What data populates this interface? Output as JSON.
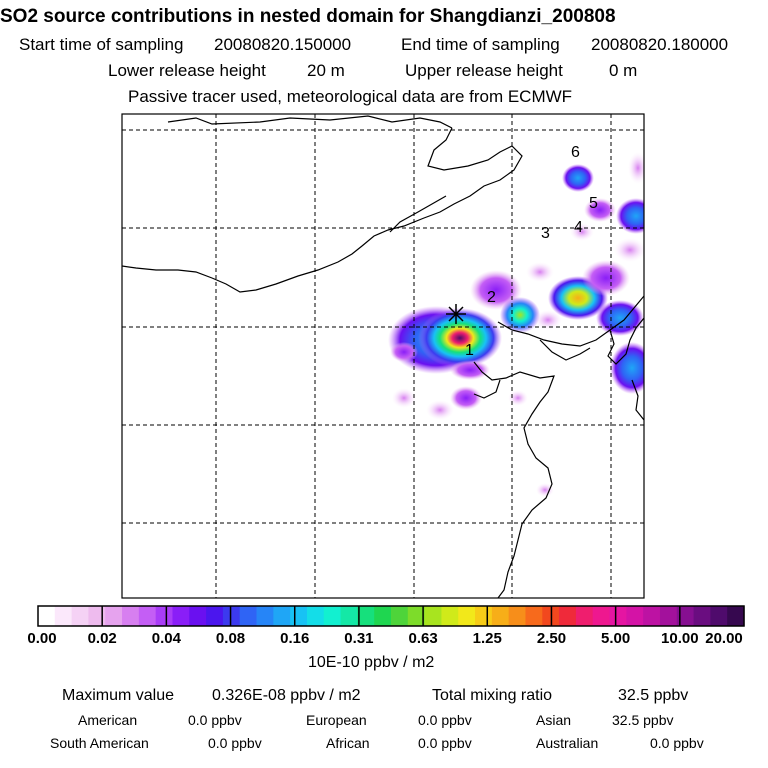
{
  "title": "SO2 source contributions in nested domain for Shangdianzi_200808",
  "sampling": {
    "start_label": "Start time of sampling",
    "start_value": "20080820.150000",
    "end_label": "End time of sampling",
    "end_value": "20080820.180000"
  },
  "release": {
    "lower_label": "Lower release height",
    "lower_value": "20 m",
    "upper_label": "Upper release height",
    "upper_value": "0 m"
  },
  "note": "Passive tracer used, meteorological data are from ECMWF",
  "map": {
    "markers": [
      "1",
      "2",
      "3",
      "4",
      "5",
      "6"
    ],
    "receptor_symbol": "✳"
  },
  "colorbar": {
    "labels": [
      "0.00",
      "0.02",
      "0.04",
      "0.08",
      "0.16",
      "0.31",
      "0.63",
      "1.25",
      "2.50",
      "5.00",
      "10.00",
      "20.00"
    ],
    "unit": "10E-10 ppbv / m2",
    "colors": [
      "#ffffff",
      "#fbe8fb",
      "#f5d2f5",
      "#eebbee",
      "#e6a3ee",
      "#d77ff0",
      "#c45ef5",
      "#a93cf7",
      "#8a1ef7",
      "#6a10f0",
      "#4b16ee",
      "#3c3aef",
      "#2f64f5",
      "#2685f7",
      "#1fa6f6",
      "#18c2f4",
      "#14dde8",
      "#12f0d0",
      "#14e8a6",
      "#16e07c",
      "#1fd650",
      "#4ed43a",
      "#7ddc2a",
      "#a8e41f",
      "#d0ea1a",
      "#f2e81a",
      "#f7cc18",
      "#f7ae18",
      "#f78e1a",
      "#f76a1c",
      "#f2481e",
      "#ef2a3a",
      "#ef1e6e",
      "#ee188f",
      "#e515a2",
      "#d413a6",
      "#bd12a3",
      "#a3119c",
      "#860f91",
      "#6a0d80",
      "#4f0b6c",
      "#36084f"
    ]
  },
  "stats": {
    "max_label": "Maximum value",
    "max_value": "0.326E-08 ppbv / m2",
    "total_label": "Total mixing ratio",
    "total_value": "32.5 ppbv"
  },
  "regions": [
    {
      "name": "American",
      "value": "0.0 ppbv"
    },
    {
      "name": "European",
      "value": "0.0 ppbv"
    },
    {
      "name": "Asian",
      "value": "32.5 ppbv"
    },
    {
      "name": "South American",
      "value": "0.0 ppbv"
    },
    {
      "name": "African",
      "value": "0.0 ppbv"
    },
    {
      "name": "Australian",
      "value": "0.0 ppbv"
    }
  ]
}
